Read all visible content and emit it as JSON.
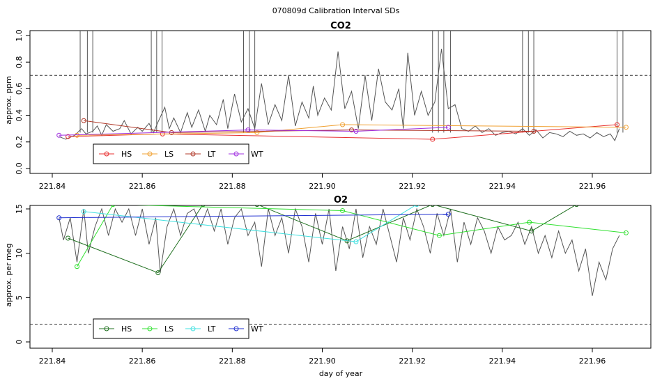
{
  "figure": {
    "title": "070809d   Calibration Interval SDs",
    "x_axis_label": "day of year"
  },
  "chart_data": [
    {
      "type": "line",
      "title": "CO2",
      "xlabel": "",
      "ylabel": "approx. ppm",
      "xlim": [
        221.84,
        221.97
      ],
      "ylim": [
        0.0,
        1.0
      ],
      "x_ticks": [
        "221.84",
        "221.86",
        "221.88",
        "221.90",
        "221.92",
        "221.94",
        "221.96"
      ],
      "y_ticks": [
        "0.0",
        "0.2",
        "0.4",
        "0.6",
        "0.8",
        "1.0"
      ],
      "threshold": 0.7,
      "trace": {
        "color": "#555555",
        "x": [
          221.8415,
          221.843,
          221.845,
          221.8465,
          221.8475,
          221.849,
          221.85,
          221.851,
          221.852,
          221.8535,
          221.855,
          221.856,
          221.8575,
          221.859,
          221.86,
          221.8615,
          221.8625,
          221.8635,
          221.865,
          221.866,
          221.867,
          221.8685,
          221.87,
          221.871,
          221.8725,
          221.874,
          221.875,
          221.8765,
          221.878,
          221.879,
          221.8805,
          221.882,
          221.8835,
          221.885,
          221.8865,
          221.888,
          221.8895,
          221.891,
          221.8925,
          221.894,
          221.8955,
          221.897,
          221.898,
          221.899,
          221.9005,
          221.902,
          221.9035,
          221.905,
          221.9065,
          221.908,
          221.9095,
          221.911,
          221.9125,
          221.914,
          221.9155,
          221.917,
          221.918,
          221.919,
          221.9205,
          221.922,
          221.9235,
          221.925,
          221.9265,
          221.928,
          221.9295,
          221.931,
          221.9325,
          221.934,
          221.9355,
          221.937,
          221.9385,
          221.94,
          221.9415,
          221.943,
          221.9445,
          221.946,
          221.9475,
          221.949,
          221.9505,
          221.952,
          221.9535,
          221.955,
          221.9565,
          221.958,
          221.9595,
          221.961,
          221.9625,
          221.964,
          221.965,
          221.966
        ],
        "y": [
          0.24,
          0.22,
          0.25,
          0.3,
          0.26,
          0.28,
          0.32,
          0.25,
          0.33,
          0.28,
          0.3,
          0.36,
          0.26,
          0.31,
          0.28,
          0.34,
          0.27,
          0.35,
          0.46,
          0.3,
          0.38,
          0.27,
          0.42,
          0.31,
          0.44,
          0.28,
          0.4,
          0.33,
          0.52,
          0.3,
          0.56,
          0.35,
          0.45,
          0.3,
          0.64,
          0.33,
          0.48,
          0.36,
          0.7,
          0.32,
          0.5,
          0.38,
          0.62,
          0.4,
          0.53,
          0.44,
          0.88,
          0.45,
          0.58,
          0.3,
          0.7,
          0.36,
          0.75,
          0.5,
          0.44,
          0.6,
          0.3,
          0.87,
          0.4,
          0.58,
          0.4,
          0.5,
          0.9,
          0.45,
          0.48,
          0.3,
          0.28,
          0.32,
          0.27,
          0.3,
          0.25,
          0.27,
          0.28,
          0.26,
          0.3,
          0.25,
          0.29,
          0.23,
          0.27,
          0.26,
          0.24,
          0.28,
          0.25,
          0.26,
          0.23,
          0.27,
          0.24,
          0.26,
          0.21,
          0.3
        ]
      },
      "spikes_x": [
        221.8462,
        221.8478,
        221.849,
        221.862,
        221.8632,
        221.8644,
        221.8825,
        221.8838,
        221.885,
        221.9245,
        221.9258,
        221.927,
        221.9285,
        221.9445,
        221.9458,
        221.947,
        221.9655,
        221.9668
      ],
      "series": [
        {
          "name": "HS",
          "color": "#e83030",
          "x": [
            221.8435,
            221.8645,
            221.9245,
            221.9655
          ],
          "y": [
            0.24,
            0.26,
            0.22,
            0.33
          ]
        },
        {
          "name": "LS",
          "color": "#f0a030",
          "x": [
            221.8455,
            221.8855,
            221.9045,
            221.9675
          ],
          "y": [
            0.25,
            0.27,
            0.33,
            0.31
          ]
        },
        {
          "name": "LT",
          "color": "#b03828",
          "x": [
            221.847,
            221.8665,
            221.9065,
            221.947
          ],
          "y": [
            0.36,
            0.27,
            0.29,
            0.28
          ]
        },
        {
          "name": "WT",
          "color": "#a030e0",
          "x": [
            221.8415,
            221.8835,
            221.9075,
            221.928
          ],
          "y": [
            0.25,
            0.29,
            0.28,
            0.31
          ]
        }
      ],
      "legend": {
        "placement": "bottom-left",
        "items": [
          "HS",
          "LS",
          "LT",
          "WT"
        ]
      }
    },
    {
      "type": "line",
      "title": "O2",
      "xlabel": "day of year",
      "ylabel": "approx. per meg",
      "xlim": [
        221.84,
        221.97
      ],
      "ylim": [
        0,
        15
      ],
      "x_ticks": [
        "221.84",
        "221.86",
        "221.88",
        "221.90",
        "221.92",
        "221.94",
        "221.96"
      ],
      "y_ticks": [
        "0",
        "5",
        "10",
        "15"
      ],
      "threshold": 2,
      "trace": {
        "color": "#555555",
        "x": [
          221.8415,
          221.8425,
          221.844,
          221.8455,
          221.847,
          221.848,
          221.8495,
          221.851,
          221.8525,
          221.854,
          221.8555,
          221.857,
          221.8585,
          221.86,
          221.8615,
          221.863,
          221.864,
          221.8655,
          221.867,
          221.8685,
          221.87,
          221.8715,
          221.873,
          221.8745,
          221.876,
          221.8775,
          221.879,
          221.8805,
          221.882,
          221.8835,
          221.885,
          221.8865,
          221.888,
          221.8895,
          221.891,
          221.8925,
          221.894,
          221.8955,
          221.897,
          221.8985,
          221.9,
          221.9015,
          221.903,
          221.9045,
          221.906,
          221.9075,
          221.909,
          221.9105,
          221.912,
          221.9135,
          221.915,
          221.9165,
          221.918,
          221.9195,
          221.921,
          221.9225,
          221.924,
          221.9255,
          221.927,
          221.9285,
          221.93,
          221.9315,
          221.933,
          221.9345,
          221.936,
          221.9375,
          221.939,
          221.9405,
          221.942,
          221.9435,
          221.945,
          221.9465,
          221.948,
          221.9495,
          221.951,
          221.9525,
          221.954,
          221.9555,
          221.957,
          221.9585,
          221.96,
          221.9615,
          221.963,
          221.9645,
          221.966
        ],
        "y": [
          14,
          11.5,
          14,
          9,
          15,
          10,
          13,
          15,
          12,
          15,
          13.5,
          15,
          12,
          15,
          11,
          14,
          7.8,
          13,
          15,
          12,
          14.5,
          15,
          13,
          15,
          12.5,
          15,
          11,
          14,
          15,
          12,
          13.5,
          8.5,
          15,
          12,
          14,
          10,
          15,
          13,
          9,
          14.5,
          11,
          15,
          8,
          13,
          10.5,
          15,
          9.5,
          13,
          11,
          15,
          12,
          9,
          14,
          11.5,
          15,
          13,
          10,
          14.5,
          12,
          15,
          9,
          13.5,
          11,
          14,
          12.5,
          10,
          13,
          11.5,
          12,
          13.5,
          11,
          13,
          10,
          12,
          9.5,
          12.5,
          10,
          11.5,
          8,
          10.5,
          5.2,
          9,
          7,
          10.5,
          12
        ]
      },
      "spikes_x": [],
      "series": [
        {
          "name": "HS",
          "color": "#207020",
          "x": [
            221.8435,
            221.8635,
            221.8735,
            221.8855,
            221.9055,
            221.9245,
            221.9465,
            221.9565
          ],
          "y": [
            11.7,
            7.8,
            15.5,
            15.5,
            11.4,
            15.5,
            12.5,
            15.5
          ]
        },
        {
          "name": "LS",
          "color": "#30e030",
          "x": [
            221.8455,
            221.8535,
            221.9045,
            221.926,
            221.946,
            221.9675
          ],
          "y": [
            8.5,
            15.5,
            14.8,
            12.0,
            13.5,
            12.3
          ]
        },
        {
          "name": "LT",
          "color": "#40e0e0",
          "x": [
            221.847,
            221.9075,
            221.921
          ],
          "y": [
            14.7,
            11.3,
            15.5
          ]
        },
        {
          "name": "WT",
          "color": "#2030d0",
          "x": [
            221.8415,
            221.928
          ],
          "y": [
            14.0,
            14.4
          ]
        }
      ],
      "legend": {
        "placement": "bottom-left",
        "items": [
          "HS",
          "LS",
          "LT",
          "WT"
        ]
      }
    }
  ]
}
